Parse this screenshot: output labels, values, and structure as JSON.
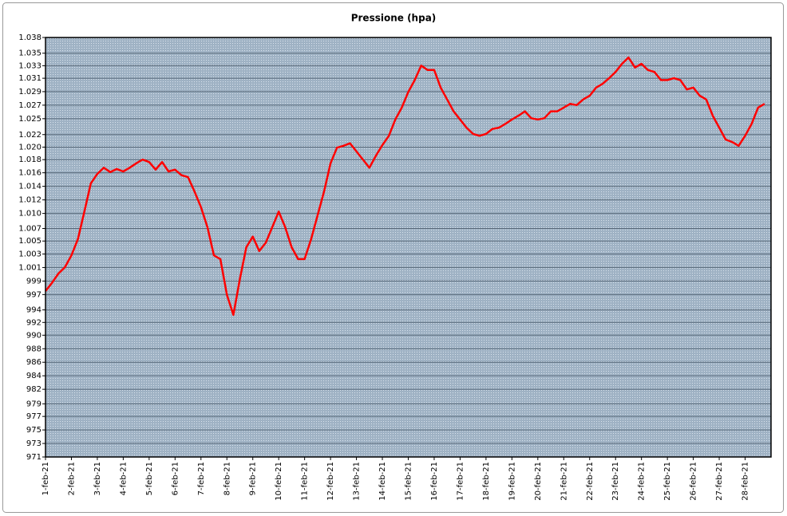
{
  "chart_data": {
    "type": "line",
    "title": "Pressione (hpa)",
    "categories": [
      "1-feb-21",
      null,
      null,
      null,
      "2-feb-21",
      null,
      null,
      null,
      "3-feb-21",
      null,
      null,
      null,
      "4-feb-21",
      null,
      null,
      null,
      "5-feb-21",
      null,
      null,
      null,
      "6-feb-21",
      null,
      null,
      null,
      "7-feb-21",
      null,
      null,
      null,
      "8-feb-21",
      null,
      null,
      null,
      "9-feb-21",
      null,
      null,
      null,
      "10-feb-21",
      null,
      null,
      null,
      "11-feb-21",
      null,
      null,
      null,
      "12-feb-21",
      null,
      null,
      null,
      "13-feb-21",
      null,
      null,
      null,
      "14-feb-21",
      null,
      null,
      null,
      "15-feb-21",
      null,
      null,
      null,
      "16-feb-21",
      null,
      null,
      null,
      "17-feb-21",
      null,
      null,
      null,
      "18-feb-21",
      null,
      null,
      null,
      "19-feb-21",
      null,
      null,
      null,
      "20-feb-21",
      null,
      null,
      null,
      "21-feb-21",
      null,
      null,
      null,
      "22-feb-21",
      null,
      null,
      null,
      "23-feb-21",
      null,
      null,
      null,
      "24-feb-21",
      null,
      null,
      null,
      "25-feb-21",
      null,
      null,
      null,
      "26-feb-21",
      null,
      null,
      null,
      "27-feb-21",
      null,
      null,
      null,
      "28-feb-21",
      null,
      null,
      null
    ],
    "values": [
      997.5,
      998.8,
      1000.3,
      1001.3,
      1003.2,
      1005.8,
      1010.2,
      1014.7,
      1016.2,
      1017.2,
      1016.5,
      1017,
      1016.6,
      1017.2,
      1017.9,
      1018.5,
      1018.1,
      1016.9,
      1018.1,
      1016.6,
      1016.9,
      1016,
      1015.7,
      1013.4,
      1010.9,
      1007.7,
      1003.2,
      1002.6,
      996.9,
      993.7,
      999.4,
      1004.5,
      1006.2,
      1003.9,
      1005.2,
      1007.7,
      1010.2,
      1007.7,
      1004.5,
      1002.6,
      1002.6,
      1005.8,
      1009.6,
      1013.4,
      1017.9,
      1020.4,
      1020.7,
      1021.1,
      1019.8,
      1018.5,
      1017.2,
      1019.1,
      1020.8,
      1022.3,
      1024.9,
      1026.8,
      1029.3,
      1031.2,
      1033.5,
      1032.8,
      1032.8,
      1030,
      1028.1,
      1026.2,
      1024.9,
      1023.6,
      1022.6,
      1022.3,
      1022.6,
      1023.4,
      1023.6,
      1024.2,
      1024.9,
      1025.5,
      1026.2,
      1025.1,
      1024.9,
      1025.1,
      1026.2,
      1026.2,
      1026.8,
      1027.4,
      1027.2,
      1028.1,
      1028.7,
      1030,
      1030.6,
      1031.5,
      1032.5,
      1033.8,
      1034.8,
      1033.2,
      1033.8,
      1032.8,
      1032.5,
      1031.2,
      1031.2,
      1031.5,
      1031.2,
      1029.7,
      1030,
      1028.7,
      1028.1,
      1025.5,
      1023.6,
      1021.7,
      1021.3,
      1020.7,
      1022.3,
      1024.2,
      1026.8,
      1027.4
    ],
    "color": "#ff0000",
    "ylim": [
      971,
      1038
    ],
    "yticks": [
      {
        "value": 971,
        "label": "971"
      },
      {
        "value": 973.16,
        "label": "973"
      },
      {
        "value": 975.32,
        "label": "975"
      },
      {
        "value": 977.48,
        "label": "977"
      },
      {
        "value": 979.49,
        "label": "979"
      },
      {
        "value": 981.81,
        "label": "982"
      },
      {
        "value": 983.97,
        "label": "984"
      },
      {
        "value": 986.13,
        "label": "986"
      },
      {
        "value": 988.29,
        "label": "988"
      },
      {
        "value": 990.45,
        "label": "990"
      },
      {
        "value": 992.49,
        "label": "992"
      },
      {
        "value": 994.49,
        "label": "994"
      },
      {
        "value": 996.94,
        "label": "997"
      },
      {
        "value": 999.1,
        "label": "999"
      },
      {
        "value": 1001.26,
        "label": "1.001"
      },
      {
        "value": 1003.42,
        "label": "1.003"
      },
      {
        "value": 1005.49,
        "label": "1.005"
      },
      {
        "value": 1007.49,
        "label": "1.007"
      },
      {
        "value": 1009.9,
        "label": "1.010"
      },
      {
        "value": 1012.06,
        "label": "1.012"
      },
      {
        "value": 1014.23,
        "label": "1.014"
      },
      {
        "value": 1016.39,
        "label": "1.016"
      },
      {
        "value": 1018.49,
        "label": "1.018"
      },
      {
        "value": 1020.49,
        "label": "1.020"
      },
      {
        "value": 1022.49,
        "label": "1.022"
      },
      {
        "value": 1025.03,
        "label": "1.025"
      },
      {
        "value": 1027.19,
        "label": "1.027"
      },
      {
        "value": 1029.35,
        "label": "1.029"
      },
      {
        "value": 1031.49,
        "label": "1.031"
      },
      {
        "value": 1033.49,
        "label": "1.033"
      },
      {
        "value": 1035.49,
        "label": "1.035"
      },
      {
        "value": 1038,
        "label": "1.038"
      }
    ],
    "grid": true
  }
}
